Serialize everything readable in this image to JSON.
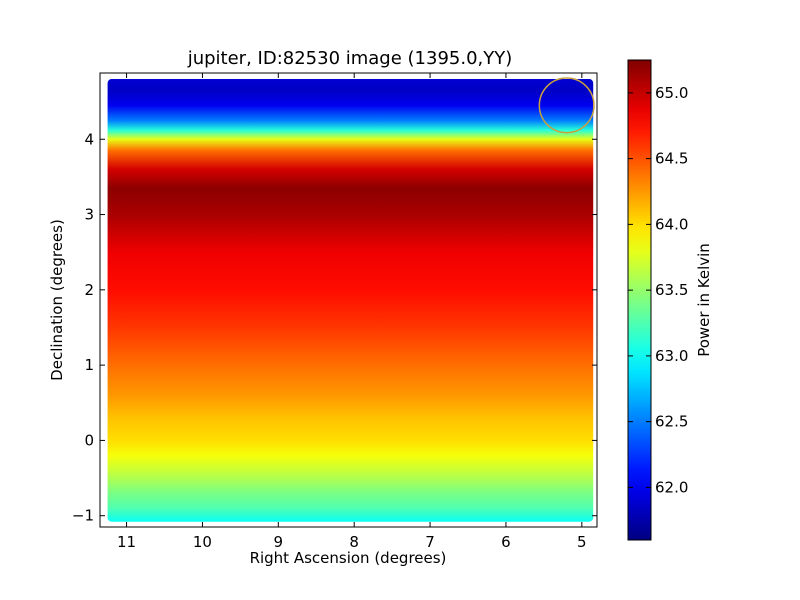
{
  "chart_data": {
    "type": "heatmap",
    "title": "jupiter, ID:82530 image (1395.0,YY)",
    "xlabel": "Right Ascension (degrees)",
    "ylabel": "Declination (degrees)",
    "colorbar_label": "Power in Kelvin",
    "colormap": "jet",
    "x_inverted": true,
    "xlim": [
      11.35,
      4.8
    ],
    "ylim": [
      -1.15,
      4.88
    ],
    "x_ticks": [
      11,
      10,
      9,
      8,
      7,
      6,
      5
    ],
    "y_ticks": [
      -1,
      0,
      1,
      2,
      3,
      4
    ],
    "color_range": [
      61.6,
      65.25
    ],
    "color_ticks": [
      62.0,
      62.5,
      63.0,
      63.5,
      64.0,
      64.5,
      65.0
    ],
    "data_extent": {
      "x": [
        11.25,
        4.85
      ],
      "y": [
        -1.08,
        4.8
      ]
    },
    "declination_profile": [
      {
        "dec": -1.08,
        "power": 63.0
      },
      {
        "dec": -0.9,
        "power": 63.25
      },
      {
        "dec": -0.7,
        "power": 63.4
      },
      {
        "dec": -0.5,
        "power": 63.6
      },
      {
        "dec": -0.2,
        "power": 63.85
      },
      {
        "dec": 0.0,
        "power": 64.0
      },
      {
        "dec": 0.3,
        "power": 64.1
      },
      {
        "dec": 0.6,
        "power": 64.25
      },
      {
        "dec": 1.0,
        "power": 64.4
      },
      {
        "dec": 1.5,
        "power": 64.6
      },
      {
        "dec": 2.0,
        "power": 64.75
      },
      {
        "dec": 2.5,
        "power": 64.85
      },
      {
        "dec": 3.0,
        "power": 65.1
      },
      {
        "dec": 3.35,
        "power": 65.2
      },
      {
        "dec": 3.6,
        "power": 64.95
      },
      {
        "dec": 3.85,
        "power": 64.4
      },
      {
        "dec": 4.0,
        "power": 63.8
      },
      {
        "dec": 4.12,
        "power": 63.1
      },
      {
        "dec": 4.25,
        "power": 62.5
      },
      {
        "dec": 4.45,
        "power": 62.0
      },
      {
        "dec": 4.65,
        "power": 61.85
      },
      {
        "dec": 4.8,
        "power": 61.9
      }
    ],
    "marker": {
      "type": "circle",
      "ra": 5.2,
      "dec": 4.45,
      "radius_deg": 0.36,
      "color": "#c8a040"
    }
  }
}
